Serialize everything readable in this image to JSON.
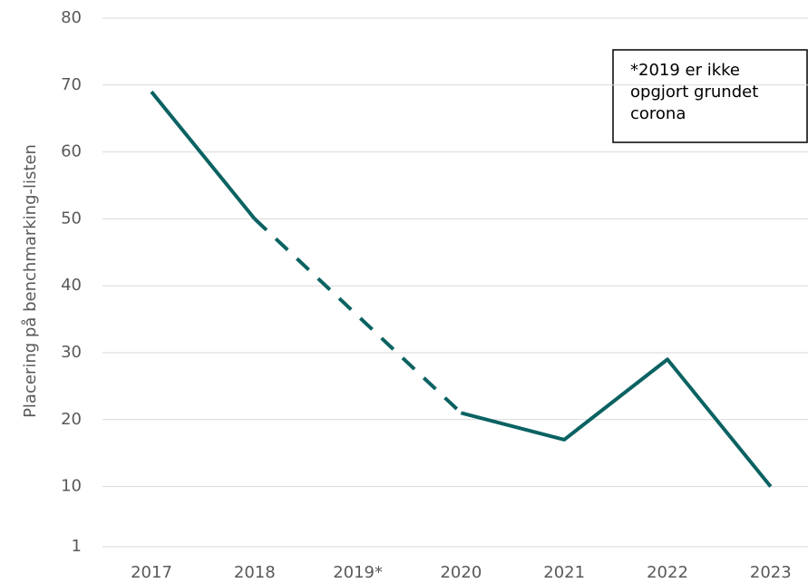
{
  "chart_data": {
    "type": "line",
    "y_axis_label": "Placering på benchmarking-listen",
    "categories": [
      "2017",
      "2018",
      "2019*",
      "2020",
      "2021",
      "2022",
      "2023"
    ],
    "series": [
      {
        "name": "Placering",
        "color": "#0b6262",
        "values": [
          69,
          50,
          null,
          21,
          17,
          29,
          10
        ]
      }
    ],
    "ylim": [
      1,
      80
    ],
    "yticks": [
      1,
      10,
      20,
      30,
      40,
      50,
      60,
      70,
      80
    ],
    "grid": true,
    "annotation": [
      "*2019 er ikke",
      "opgjort grundet",
      "corona"
    ]
  }
}
